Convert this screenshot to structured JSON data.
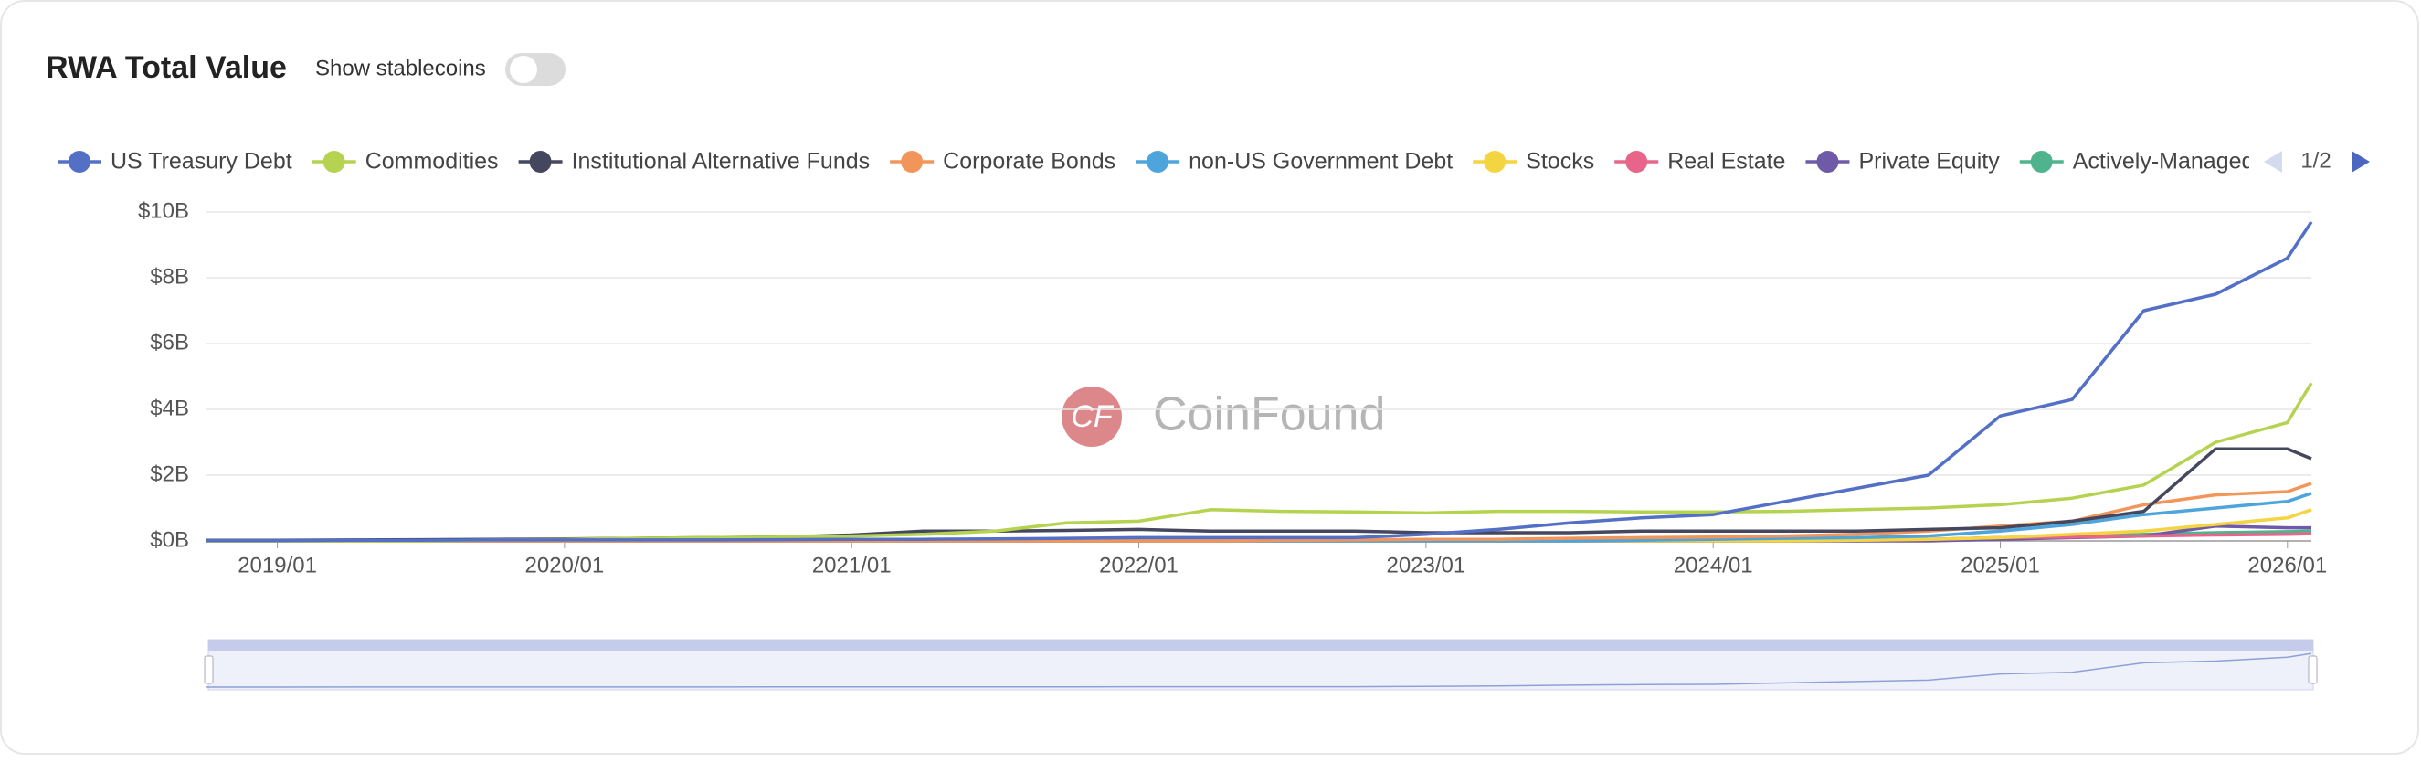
{
  "header": {
    "title": "RWA Total Value",
    "toggle_label": "Show stablecoins",
    "watermark": "CoinFound",
    "legend_page": "1/2"
  },
  "chart_data": {
    "type": "line",
    "x": [
      "2018/10",
      "2019/01",
      "2019/04",
      "2019/07",
      "2019/10",
      "2020/01",
      "2020/04",
      "2020/07",
      "2020/10",
      "2021/01",
      "2021/04",
      "2021/07",
      "2021/10",
      "2022/01",
      "2022/04",
      "2022/07",
      "2022/10",
      "2023/01",
      "2023/04",
      "2023/07",
      "2023/10",
      "2024/01",
      "2024/04",
      "2024/07",
      "2024/10",
      "2025/01",
      "2025/04",
      "2025/07",
      "2025/10",
      "2026/01",
      "2026/02"
    ],
    "xlim": [
      "2018/10",
      "2026/02"
    ],
    "xticks": [
      "2019/01",
      "2020/01",
      "2021/01",
      "2022/01",
      "2023/01",
      "2024/01",
      "2025/01",
      "2026/01"
    ],
    "ylim": [
      0,
      10
    ],
    "yticks": [
      {
        "value": 0,
        "label": "$0B"
      },
      {
        "value": 2,
        "label": "$2B"
      },
      {
        "value": 4,
        "label": "$4B"
      },
      {
        "value": 6,
        "label": "$6B"
      },
      {
        "value": 8,
        "label": "$8B"
      },
      {
        "value": 10,
        "label": "$10B"
      }
    ],
    "grid": true,
    "series": [
      {
        "name": "US Treasury Debt",
        "color": "#5470c6",
        "values": [
          0.01,
          0.01,
          0.02,
          0.02,
          0.03,
          0.03,
          0.03,
          0.03,
          0.04,
          0.05,
          0.05,
          0.06,
          0.08,
          0.1,
          0.1,
          0.1,
          0.1,
          0.2,
          0.35,
          0.55,
          0.7,
          0.8,
          1.2,
          1.6,
          2.0,
          3.8,
          4.3,
          7.0,
          7.5,
          8.6,
          9.7
        ]
      },
      {
        "name": "Commodities",
        "color": "#b5d250",
        "values": [
          0,
          0,
          0,
          0,
          0.03,
          0.05,
          0.08,
          0.1,
          0.12,
          0.15,
          0.2,
          0.3,
          0.55,
          0.6,
          0.95,
          0.9,
          0.88,
          0.85,
          0.9,
          0.9,
          0.88,
          0.88,
          0.9,
          0.95,
          1.0,
          1.1,
          1.3,
          1.7,
          3.0,
          3.6,
          4.8
        ]
      },
      {
        "name": "Institutional Alternative Funds",
        "color": "#44475e",
        "values": [
          0.02,
          0.02,
          0.03,
          0.04,
          0.05,
          0.06,
          0.08,
          0.1,
          0.12,
          0.18,
          0.3,
          0.3,
          0.32,
          0.35,
          0.3,
          0.3,
          0.3,
          0.25,
          0.25,
          0.25,
          0.3,
          0.3,
          0.3,
          0.3,
          0.35,
          0.4,
          0.6,
          0.9,
          2.8,
          2.8,
          2.5
        ]
      },
      {
        "name": "Corporate Bonds",
        "color": "#f2955a",
        "values": [
          0,
          0,
          0,
          0,
          0,
          0,
          0,
          0,
          0,
          0,
          0,
          0,
          0,
          0,
          0,
          0.02,
          0.03,
          0.05,
          0.05,
          0.08,
          0.1,
          0.12,
          0.15,
          0.2,
          0.3,
          0.45,
          0.6,
          1.1,
          1.4,
          1.5,
          1.75
        ]
      },
      {
        "name": "non-US Government Debt",
        "color": "#4ea5dc",
        "values": [
          0,
          0,
          0,
          0,
          0,
          0,
          0,
          0,
          0,
          0,
          0,
          0,
          0,
          0,
          0,
          0,
          0,
          0,
          0,
          0,
          0.02,
          0.05,
          0.08,
          0.1,
          0.15,
          0.3,
          0.5,
          0.8,
          1.0,
          1.2,
          1.45
        ]
      },
      {
        "name": "Stocks",
        "color": "#f5d442",
        "values": [
          0,
          0,
          0,
          0,
          0,
          0,
          0,
          0,
          0,
          0,
          0,
          0,
          0,
          0,
          0,
          0,
          0,
          0,
          0,
          0,
          0,
          0,
          0,
          0.02,
          0.05,
          0.1,
          0.2,
          0.3,
          0.5,
          0.7,
          0.95
        ]
      },
      {
        "name": "Real Estate",
        "color": "#e8658a",
        "values": [
          0,
          0,
          0,
          0,
          0,
          0,
          0,
          0,
          0,
          0,
          0,
          0,
          0,
          0,
          0,
          0,
          0,
          0,
          0,
          0,
          0,
          0,
          0,
          0.02,
          0.05,
          0.1,
          0.12,
          0.15,
          0.18,
          0.2,
          0.22
        ]
      },
      {
        "name": "Private Equity",
        "color": "#6f5aa8",
        "values": [
          0,
          0,
          0,
          0,
          0,
          0,
          0,
          0,
          0,
          0,
          0,
          0,
          0,
          0,
          0,
          0,
          0,
          0,
          0,
          0,
          0,
          0,
          0,
          0,
          0,
          0.05,
          0.1,
          0.15,
          0.45,
          0.4,
          0.4
        ]
      },
      {
        "name": "Actively-Managed",
        "color": "#4fb38d",
        "values": [
          0,
          0,
          0,
          0,
          0,
          0,
          0,
          0,
          0,
          0,
          0,
          0,
          0,
          0,
          0,
          0,
          0,
          0,
          0,
          0,
          0,
          0,
          0,
          0,
          0.05,
          0.1,
          0.15,
          0.2,
          0.25,
          0.28,
          0.3
        ]
      }
    ]
  }
}
